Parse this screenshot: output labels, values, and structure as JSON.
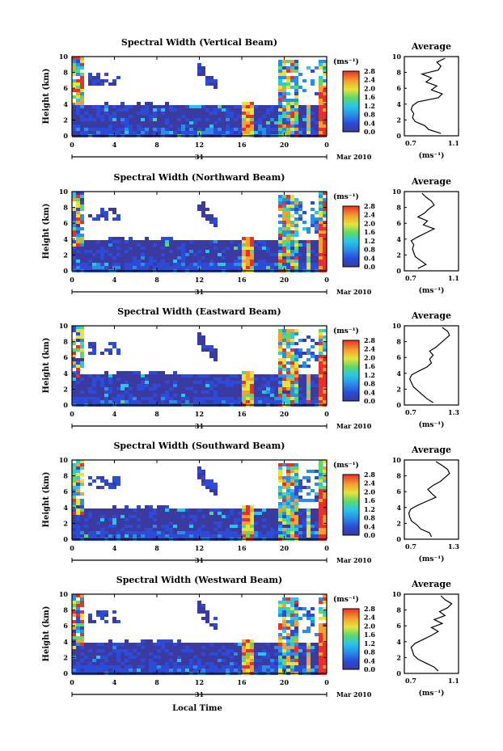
{
  "figure": {
    "common": {
      "height_label": "Height (km)",
      "day_label": "31",
      "month_label": "Mar 2010",
      "colorbar_unit": "(ms⁻¹)",
      "colorbar_ticks": [
        "0.0",
        "0.4",
        "0.8",
        "1.2",
        "1.6",
        "2.0",
        "2.4",
        "2.8"
      ],
      "profile_title": "Average",
      "profile_unit": "(ms⁻¹)",
      "x_tick_labels": [
        "0",
        "4",
        "8",
        "12",
        "16",
        "20",
        "0"
      ],
      "y_tick_labels": [
        "0",
        "2",
        "4",
        "6",
        "8",
        "10"
      ],
      "xlabel": "Local Time"
    }
  },
  "chart_data": [
    {
      "type": "heatmap",
      "title": "Spectral Width (Vertical Beam)",
      "xlabel": "Local Time",
      "ylabel": "Height (km)",
      "xlim": [
        0,
        24
      ],
      "ylim": [
        0,
        10
      ],
      "x_ticks": [
        0,
        4,
        8,
        12,
        16,
        20,
        24
      ],
      "colorbar": {
        "label": "(ms⁻¹)",
        "range": [
          0.0,
          2.8
        ]
      },
      "profile": {
        "title": "Average",
        "xlabel": "(ms⁻¹)",
        "xlim": [
          0.7,
          1.1
        ],
        "x_tick_labels": [
          "0.7",
          "1.1"
        ],
        "ylim": [
          0,
          10
        ],
        "height": [
          0.3,
          0.8,
          1.3,
          1.8,
          2.3,
          2.8,
          3.3,
          3.8,
          4.3,
          4.8,
          5.3,
          5.8,
          6.3,
          6.8,
          7.3,
          7.8,
          8.3,
          8.8,
          9.3,
          9.8
        ],
        "values": [
          0.97,
          0.88,
          0.85,
          0.78,
          0.76,
          0.77,
          0.75,
          0.76,
          0.8,
          0.95,
          0.98,
          0.9,
          0.94,
          0.86,
          0.9,
          0.83,
          0.95,
          0.97,
          0.94,
          1.0
        ]
      }
    },
    {
      "type": "heatmap",
      "title": "Spectral Width (Northward Beam)",
      "xlabel": "Local Time",
      "ylabel": "Height (km)",
      "xlim": [
        0,
        24
      ],
      "ylim": [
        0,
        10
      ],
      "x_ticks": [
        0,
        4,
        8,
        12,
        16,
        20,
        24
      ],
      "colorbar": {
        "label": "(ms⁻¹)",
        "range": [
          0.0,
          2.8
        ]
      },
      "profile": {
        "title": "Average",
        "xlabel": "(ms⁻¹)",
        "xlim": [
          0.7,
          1.1
        ],
        "x_tick_labels": [
          "0.7",
          "1.1"
        ],
        "ylim": [
          0,
          10
        ],
        "height": [
          0.3,
          0.8,
          1.3,
          1.8,
          2.3,
          2.8,
          3.3,
          3.8,
          4.3,
          4.8,
          5.3,
          5.8,
          6.3,
          6.8,
          7.3,
          7.8,
          8.3,
          8.8,
          9.3,
          9.8
        ],
        "values": [
          0.8,
          0.86,
          0.82,
          0.78,
          0.77,
          0.76,
          0.77,
          0.75,
          0.8,
          0.86,
          0.92,
          0.84,
          0.87,
          0.8,
          0.85,
          0.88,
          0.92,
          0.9,
          0.86,
          0.83
        ]
      }
    },
    {
      "type": "heatmap",
      "title": "Spectral Width (Eastward Beam)",
      "xlabel": "Local Time",
      "ylabel": "Height (km)",
      "xlim": [
        0,
        24
      ],
      "ylim": [
        0,
        10
      ],
      "x_ticks": [
        0,
        4,
        8,
        12,
        16,
        20,
        24
      ],
      "colorbar": {
        "label": "(ms⁻¹)",
        "range": [
          0.0,
          2.8
        ]
      },
      "profile": {
        "title": "Average",
        "xlabel": "(ms⁻¹)",
        "xlim": [
          0.7,
          1.3
        ],
        "x_tick_labels": [
          "0.7",
          "1.3"
        ],
        "ylim": [
          0,
          10
        ],
        "height": [
          0.3,
          0.8,
          1.3,
          1.8,
          2.3,
          2.8,
          3.3,
          3.8,
          4.3,
          4.8,
          5.3,
          5.8,
          6.3,
          6.8,
          7.3,
          7.8,
          8.3,
          8.8,
          9.3,
          9.8
        ],
        "values": [
          1.02,
          0.95,
          0.9,
          0.85,
          0.8,
          0.78,
          0.76,
          0.78,
          0.86,
          0.95,
          1.0,
          0.98,
          1.02,
          0.98,
          1.05,
          1.1,
          1.15,
          1.2,
          1.18,
          1.12
        ]
      }
    },
    {
      "type": "heatmap",
      "title": "Spectral Width (Southward Beam)",
      "xlabel": "Local Time",
      "ylabel": "Height (km)",
      "xlim": [
        0,
        24
      ],
      "ylim": [
        0,
        10
      ],
      "x_ticks": [
        0,
        4,
        8,
        12,
        16,
        20,
        24
      ],
      "colorbar": {
        "label": "(ms⁻¹)",
        "range": [
          0.0,
          2.8
        ]
      },
      "profile": {
        "title": "Average",
        "xlabel": "(ms⁻¹)",
        "xlim": [
          0.7,
          1.3
        ],
        "x_tick_labels": [
          "0.7",
          "1.3"
        ],
        "ylim": [
          0,
          10
        ],
        "height": [
          0.3,
          0.8,
          1.3,
          1.8,
          2.3,
          2.8,
          3.3,
          3.8,
          4.3,
          4.8,
          5.3,
          5.8,
          6.3,
          6.8,
          7.3,
          7.8,
          8.3,
          8.8,
          9.3,
          9.8
        ],
        "values": [
          1.0,
          0.98,
          0.88,
          0.84,
          0.78,
          0.76,
          0.75,
          0.77,
          0.85,
          0.95,
          1.05,
          1.0,
          0.96,
          1.02,
          1.1,
          1.15,
          1.2,
          1.18,
          1.12,
          1.05
        ]
      }
    },
    {
      "type": "heatmap",
      "title": "Spectral Width (Westward Beam)",
      "xlabel": "Local Time",
      "ylabel": "Height (km)",
      "xlim": [
        0,
        24
      ],
      "ylim": [
        0,
        10
      ],
      "x_ticks": [
        0,
        4,
        8,
        12,
        16,
        20,
        24
      ],
      "colorbar": {
        "label": "(ms⁻¹)",
        "range": [
          0.0,
          2.8
        ]
      },
      "profile": {
        "title": "Average",
        "xlabel": "(ms⁻¹)",
        "xlim": [
          0.7,
          1.1
        ],
        "x_tick_labels": [
          "0.7",
          "1.1"
        ],
        "ylim": [
          0,
          10
        ],
        "height": [
          0.3,
          0.8,
          1.3,
          1.8,
          2.3,
          2.8,
          3.3,
          3.8,
          4.3,
          4.8,
          5.3,
          5.8,
          6.3,
          6.8,
          7.3,
          7.8,
          8.3,
          8.8,
          9.3,
          9.8
        ],
        "values": [
          0.95,
          0.92,
          0.86,
          0.8,
          0.77,
          0.76,
          0.75,
          0.78,
          0.84,
          0.9,
          0.95,
          0.9,
          0.98,
          0.92,
          1.0,
          0.96,
          1.02,
          1.05,
          1.0,
          0.97
        ]
      }
    }
  ]
}
